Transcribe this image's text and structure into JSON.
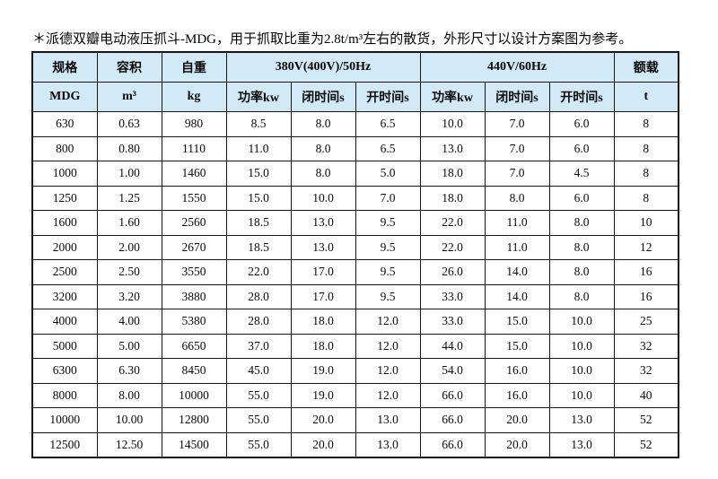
{
  "title": "＊派德双瓣电动液压抓斗-MDG，用于抓取比重为2.8t/m³左右的散货，外形尺寸以设计方案图为参考。",
  "colors": {
    "header_bg": "#d2e9f6",
    "border": "#151515",
    "text": "#0a0a0a",
    "page_bg": "#ffffff"
  },
  "table": {
    "header_groups": {
      "spec": "规格",
      "capacity": "容积",
      "weight": "自重",
      "hz50": "380V(400V)/50Hz",
      "hz60": "440V/60Hz",
      "rated_load": "额载"
    },
    "subheaders": [
      "MDG",
      "m³",
      "kg",
      "功率kw",
      "闭时间s",
      "开时间s",
      "功率kw",
      "闭时间s",
      "开时间s",
      "t"
    ],
    "rows": [
      [
        "630",
        "0.63",
        "980",
        "8.5",
        "8.0",
        "6.5",
        "10.0",
        "7.0",
        "6.0",
        "8"
      ],
      [
        "800",
        "0.80",
        "1110",
        "11.0",
        "8.0",
        "6.5",
        "13.0",
        "7.0",
        "6.0",
        "8"
      ],
      [
        "1000",
        "1.00",
        "1460",
        "15.0",
        "8.0",
        "5.0",
        "18.0",
        "7.0",
        "4.5",
        "8"
      ],
      [
        "1250",
        "1.25",
        "1550",
        "15.0",
        "10.0",
        "7.0",
        "18.0",
        "8.0",
        "6.0",
        "8"
      ],
      [
        "1600",
        "1.60",
        "2560",
        "18.5",
        "13.0",
        "9.5",
        "22.0",
        "11.0",
        "8.0",
        "10"
      ],
      [
        "2000",
        "2.00",
        "2670",
        "18.5",
        "13.0",
        "9.5",
        "22.0",
        "11.0",
        "8.0",
        "12"
      ],
      [
        "2500",
        "2.50",
        "3550",
        "22.0",
        "17.0",
        "9.5",
        "26.0",
        "14.0",
        "8.0",
        "16"
      ],
      [
        "3200",
        "3.20",
        "3880",
        "28.0",
        "17.0",
        "9.5",
        "33.0",
        "14.0",
        "8.0",
        "16"
      ],
      [
        "4000",
        "4.00",
        "5380",
        "28.0",
        "18.0",
        "12.0",
        "33.0",
        "15.0",
        "10.0",
        "25"
      ],
      [
        "5000",
        "5.00",
        "6650",
        "37.0",
        "18.0",
        "12.0",
        "44.0",
        "15.0",
        "10.0",
        "32"
      ],
      [
        "6300",
        "6.30",
        "8450",
        "45.0",
        "19.0",
        "12.0",
        "54.0",
        "16.0",
        "10.0",
        "32"
      ],
      [
        "8000",
        "8.00",
        "10000",
        "55.0",
        "19.0",
        "12.0",
        "66.0",
        "16.0",
        "10.0",
        "40"
      ],
      [
        "10000",
        "10.00",
        "12800",
        "55.0",
        "20.0",
        "13.0",
        "66.0",
        "20.0",
        "13.0",
        "52"
      ],
      [
        "12500",
        "12.50",
        "14500",
        "55.0",
        "20.0",
        "13.0",
        "66.0",
        "20.0",
        "13.0",
        "52"
      ]
    ]
  }
}
